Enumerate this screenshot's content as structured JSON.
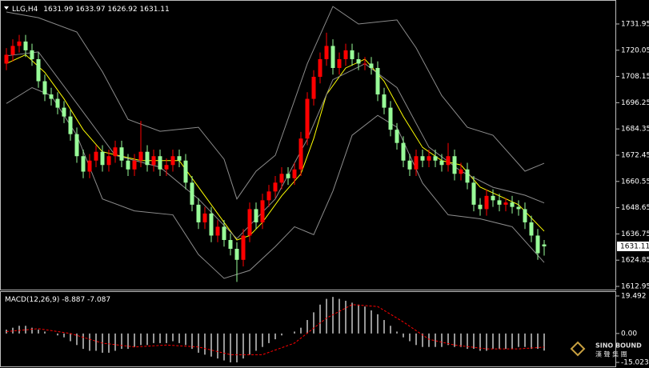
{
  "chart_data": [
    {
      "type": "candlestick",
      "symbol": "LLG,H4",
      "open": [
        1714,
        1718,
        1722,
        1724,
        1720,
        1716,
        1706,
        1700,
        1698,
        1694,
        1690,
        1682,
        1672,
        1665,
        1670,
        1674,
        1668,
        1672,
        1676,
        1670,
        1666,
        1670,
        1674,
        1668,
        1672,
        1666,
        1668,
        1672,
        1670,
        1660,
        1650,
        1642,
        1646,
        1636,
        1640,
        1634,
        1630,
        1625,
        1636,
        1648,
        1642,
        1652,
        1656,
        1660,
        1664,
        1662,
        1666,
        1680,
        1698,
        1708,
        1716,
        1722,
        1712,
        1716,
        1720,
        1716,
        1714,
        1714,
        1712,
        1700,
        1694,
        1684,
        1678,
        1670,
        1666,
        1672,
        1670,
        1672,
        1670,
        1668,
        1672,
        1664,
        1666,
        1660,
        1650,
        1648,
        1654,
        1652,
        1650,
        1651,
        1649,
        1648,
        1642,
        1636,
        1631.99
      ],
      "high": [
        1721,
        1725,
        1727,
        1727,
        1723,
        1719,
        1709,
        1703,
        1701,
        1697,
        1693,
        1685,
        1675,
        1673,
        1677,
        1677,
        1675,
        1679,
        1679,
        1673,
        1673,
        1688,
        1677,
        1675,
        1675,
        1671,
        1675,
        1675,
        1673,
        1663,
        1653,
        1649,
        1649,
        1643,
        1643,
        1637,
        1633,
        1639,
        1651,
        1651,
        1655,
        1659,
        1663,
        1667,
        1667,
        1669,
        1683,
        1701,
        1711,
        1719,
        1728,
        1725,
        1719,
        1723,
        1723,
        1719,
        1717,
        1717,
        1715,
        1703,
        1697,
        1687,
        1681,
        1673,
        1675,
        1675,
        1675,
        1675,
        1673,
        1678,
        1675,
        1669,
        1669,
        1663,
        1653,
        1657,
        1657,
        1655,
        1653,
        1654,
        1652,
        1651,
        1645,
        1639,
        1633.97
      ],
      "low": [
        1711,
        1715,
        1719,
        1717,
        1713,
        1703,
        1697,
        1695,
        1691,
        1687,
        1679,
        1669,
        1662,
        1662,
        1667,
        1665,
        1665,
        1669,
        1667,
        1663,
        1663,
        1667,
        1665,
        1665,
        1663,
        1663,
        1665,
        1667,
        1657,
        1647,
        1639,
        1639,
        1633,
        1633,
        1631,
        1627,
        1615,
        1622,
        1633,
        1639,
        1639,
        1649,
        1653,
        1657,
        1659,
        1659,
        1663,
        1677,
        1695,
        1705,
        1713,
        1709,
        1709,
        1713,
        1713,
        1711,
        1711,
        1709,
        1697,
        1691,
        1681,
        1675,
        1667,
        1663,
        1663,
        1667,
        1667,
        1667,
        1665,
        1665,
        1661,
        1661,
        1657,
        1647,
        1645,
        1645,
        1649,
        1647,
        1647,
        1646,
        1645,
        1639,
        1633,
        1625,
        1626.92
      ],
      "close": [
        1718,
        1722,
        1724,
        1720,
        1716,
        1706,
        1700,
        1698,
        1694,
        1690,
        1682,
        1672,
        1665,
        1670,
        1674,
        1668,
        1672,
        1676,
        1670,
        1666,
        1670,
        1674,
        1668,
        1672,
        1666,
        1668,
        1672,
        1670,
        1660,
        1650,
        1642,
        1646,
        1636,
        1640,
        1634,
        1630,
        1625,
        1636,
        1648,
        1642,
        1652,
        1656,
        1660,
        1664,
        1662,
        1666,
        1680,
        1698,
        1708,
        1716,
        1722,
        1712,
        1716,
        1720,
        1716,
        1714,
        1714,
        1712,
        1700,
        1694,
        1684,
        1678,
        1670,
        1666,
        1672,
        1670,
        1672,
        1670,
        1668,
        1672,
        1664,
        1666,
        1660,
        1650,
        1648,
        1654,
        1652,
        1650,
        1651,
        1649,
        1648,
        1642,
        1636,
        1628,
        1631.11
      ],
      "up_color": "#ff0000",
      "down_color": "#98fb98",
      "lines": [
        {
          "color": "#ffff00",
          "x": [
            0,
            3,
            6,
            9,
            12,
            15,
            18,
            21,
            24,
            27,
            30,
            33,
            36,
            38,
            40,
            43,
            46,
            48,
            50,
            53,
            56,
            59,
            62,
            65,
            68,
            71,
            74,
            77,
            80,
            84
          ],
          "values": [
            1714,
            1718,
            1710,
            1698,
            1684,
            1674,
            1672,
            1670,
            1670,
            1670,
            1658,
            1646,
            1634,
            1636,
            1642,
            1654,
            1664,
            1680,
            1700,
            1712,
            1716,
            1706,
            1690,
            1676,
            1670,
            1668,
            1658,
            1654,
            1650,
            1638
          ]
        },
        {
          "color": "#8c8c8c",
          "x": [
            0,
            5,
            11,
            15,
            19,
            24,
            30,
            34,
            36,
            39,
            42,
            47,
            51,
            55,
            61,
            64,
            68,
            72,
            76,
            81,
            84
          ],
          "values": [
            1737.4,
            1734.8,
            1728.3,
            1710.3,
            1688.7,
            1683.3,
            1685.1,
            1670.6,
            1652.6,
            1665.2,
            1672.4,
            1713.9,
            1739.9,
            1731.95,
            1733.8,
            1721.1,
            1699.5,
            1685.1,
            1681.5,
            1665.2,
            1668.8
          ]
        },
        {
          "color": "#8c8c8c",
          "x": [
            0,
            5,
            11,
            17,
            24,
            30,
            36,
            42,
            47,
            51,
            56,
            61,
            66,
            71,
            76,
            81,
            84
          ],
          "values": [
            1717.5,
            1719.3,
            1695.9,
            1672.4,
            1667,
            1652.6,
            1634.6,
            1652.6,
            1679.7,
            1706.7,
            1713.9,
            1703.1,
            1676.1,
            1665.2,
            1657.9,
            1654.3,
            1650.8
          ]
        },
        {
          "color": "#8c8c8c",
          "x": [
            0,
            4,
            7,
            11,
            15,
            20,
            26,
            30,
            34,
            38,
            42,
            45,
            48,
            51,
            54,
            58,
            61,
            65,
            69,
            74,
            79,
            84
          ],
          "values": [
            1695.9,
            1703.1,
            1699.5,
            1681.5,
            1652.6,
            1647.2,
            1645.4,
            1627.4,
            1616.6,
            1620.2,
            1631,
            1640,
            1636.4,
            1656.2,
            1681.5,
            1690.5,
            1685.1,
            1659.8,
            1645.4,
            1643.6,
            1640,
            1623.8
          ]
        }
      ],
      "ylim": [
        1611.5,
        1742.1
      ],
      "yticks": [
        1731.95,
        1720.05,
        1708.15,
        1696.25,
        1684.35,
        1672.45,
        1660.55,
        1648.65,
        1636.75,
        1624.85,
        1612.95
      ]
    },
    {
      "type": "macd",
      "name": "MACD(12,26,9)",
      "values": [
        2,
        3,
        4,
        4,
        3,
        2,
        1,
        0,
        -1,
        -2,
        -4,
        -6,
        -8,
        -9,
        -9,
        -10,
        -10,
        -9,
        -8,
        -8,
        -7,
        -6,
        -6,
        -5,
        -5,
        -5,
        -4,
        -5,
        -6,
        -8,
        -10,
        -11,
        -12,
        -13,
        -14,
        -15,
        -15,
        -13,
        -11,
        -9,
        -7,
        -5,
        -3,
        -1,
        0,
        1,
        3,
        7,
        11,
        15,
        18,
        19,
        18,
        17,
        16,
        15,
        14,
        12,
        10,
        7,
        4,
        1,
        -2,
        -4,
        -6,
        -7,
        -7,
        -7,
        -7,
        -6,
        -7,
        -7,
        -8,
        -8,
        -9,
        -9,
        -8,
        -8,
        -8,
        -8,
        -7,
        -7,
        -8,
        -8,
        -8.887
      ],
      "color": "#c8c8c8",
      "signal": {
        "color": "#ff0000",
        "x": [
          0,
          5,
          10,
          15,
          20,
          25,
          30,
          35,
          40,
          45,
          50,
          54,
          58,
          62,
          66,
          70,
          75,
          80,
          84
        ],
        "values": [
          1,
          2.5,
          0,
          -5,
          -7,
          -6,
          -7,
          -11,
          -11,
          -5,
          8,
          15,
          14,
          6,
          -3,
          -6,
          -8,
          -8,
          -7.087
        ]
      },
      "ylim": [
        -17.1,
        21.56
      ],
      "yticks": [
        19.492,
        {
          "value": 0,
          "label": "0.00"
        },
        -15.023
      ]
    }
  ],
  "watermark": {
    "en": "SINO BOUND",
    "zh": "漢 聲 集 團"
  }
}
